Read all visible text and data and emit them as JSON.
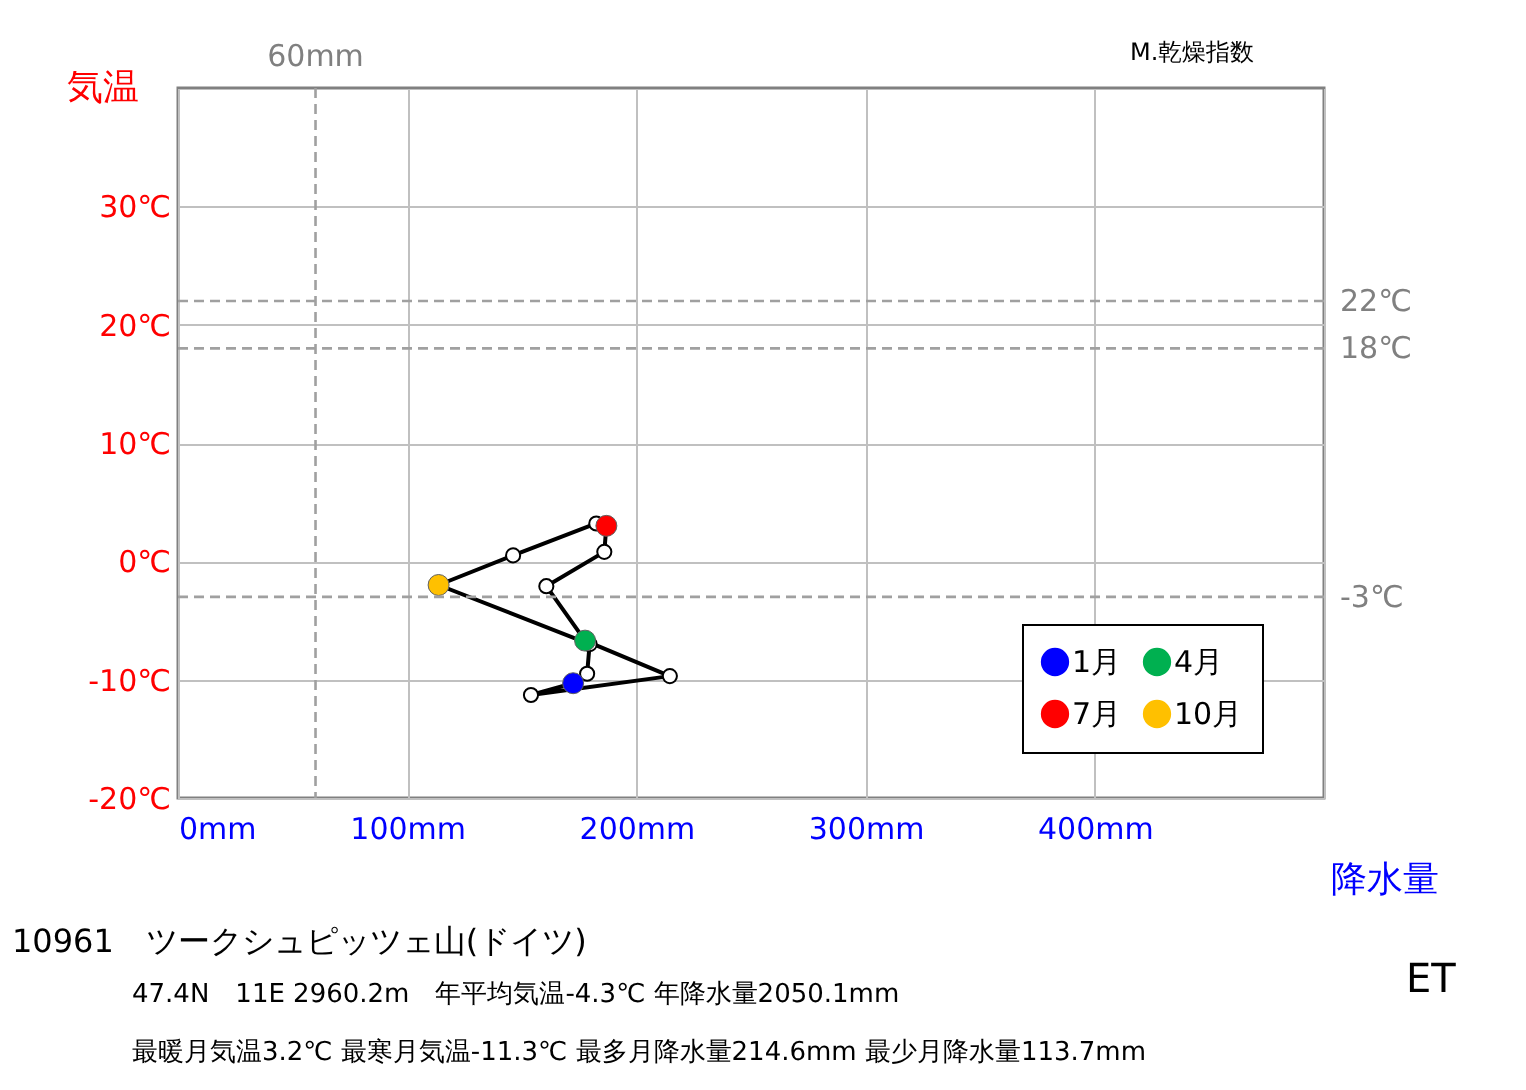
{
  "chart_data": {
    "type": "line",
    "title": "10961　ツークシュピッツェ山(ドイツ)",
    "xlabel": "降水量",
    "ylabel": "気温",
    "xlim": [
      0,
      500
    ],
    "ylim": [
      -20,
      40
    ],
    "xticks": [
      {
        "value": 0,
        "label": "0mm"
      },
      {
        "value": 100,
        "label": "100mm"
      },
      {
        "value": 200,
        "label": "200mm"
      },
      {
        "value": 300,
        "label": "300mm"
      },
      {
        "value": 400,
        "label": "400mm"
      },
      {
        "value": 500,
        "label": null
      }
    ],
    "yticks": [
      {
        "value": -20,
        "label": "-20℃"
      },
      {
        "value": -10,
        "label": "-10℃"
      },
      {
        "value": 0,
        "label": "0℃"
      },
      {
        "value": 10,
        "label": "10℃"
      },
      {
        "value": 20,
        "label": "20℃"
      },
      {
        "value": 30,
        "label": "30℃"
      }
    ],
    "grid": true,
    "legend": "bottom right",
    "series": [
      {
        "type": "line",
        "color": "#000000",
        "marker": "circle",
        "x": [
          172.4,
          154,
          214.6,
          177.6,
          160.7,
          186.0,
          186.9,
          182.5,
          146.2,
          113.7,
          179.6,
          178.5
        ],
        "values": [
          -10.3,
          -11.3,
          -9.7,
          -6.7,
          -2.1,
          0.8,
          3.0,
          3.2,
          0.5,
          -2.0,
          -7.0,
          -9.5
        ]
      },
      {
        "type": "scatter",
        "name": "1月",
        "color": "#0000ff",
        "x": [
          172.4
        ],
        "values": [
          -10.3
        ]
      },
      {
        "type": "scatter",
        "name": "4月",
        "color": "#00b050",
        "x": [
          177.6
        ],
        "values": [
          -6.7
        ]
      },
      {
        "type": "scatter",
        "name": "7月",
        "color": "#ff0000",
        "x": [
          186.9
        ],
        "values": [
          3.0
        ]
      },
      {
        "type": "scatter",
        "name": "10月",
        "color": "#ffc000",
        "x": [
          113.7
        ],
        "values": [
          -2.0
        ]
      }
    ],
    "ref_lines": [
      {
        "axis": "y",
        "value": 22,
        "label": "22℃",
        "color": "#a0a0a0",
        "line_style": "dashed"
      },
      {
        "axis": "y",
        "value": 18,
        "label": "18℃",
        "color": "#a0a0a0",
        "line_style": "dashed"
      },
      {
        "axis": "y",
        "value": -3,
        "label": "-3℃",
        "color": "#a0a0a0",
        "line_style": "dashed"
      },
      {
        "axis": "x",
        "value": 60,
        "label": "60mm",
        "color": "#a0a0a0",
        "line_style": "dashed"
      }
    ],
    "annotations": [
      "M.乾燥指数",
      "47.4N　11E 2960.2m　年平均気温-4.3℃ 年降水量2050.1mm",
      "最暖月気温3.2℃ 最寒月気温-11.3℃ 最多月降水量214.6mm 最少月降水量113.7mm",
      "ET"
    ]
  }
}
